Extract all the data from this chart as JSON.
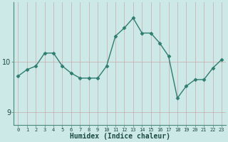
{
  "x": [
    0,
    1,
    2,
    3,
    4,
    5,
    6,
    7,
    8,
    9,
    10,
    11,
    12,
    13,
    14,
    15,
    16,
    17,
    18,
    19,
    20,
    21,
    22,
    23
  ],
  "y": [
    9.72,
    9.85,
    9.92,
    10.18,
    10.18,
    9.92,
    9.78,
    9.68,
    9.68,
    9.68,
    9.92,
    10.52,
    10.68,
    10.88,
    10.58,
    10.58,
    10.38,
    10.12,
    9.28,
    9.52,
    9.65,
    9.65,
    9.88,
    10.05
  ],
  "line_color": "#2e7d6e",
  "marker": "D",
  "marker_size": 2.5,
  "fig_bg": "#cce9e7",
  "axes_bg": "#cce9e7",
  "grid_color_v": "#c4aaaa",
  "grid_color_h": "#c4aaaa",
  "xlabel": "Humidex (Indice chaleur)",
  "yticks": [
    9,
    10
  ],
  "xlim": [
    -0.5,
    23.5
  ],
  "ylim": [
    8.75,
    11.2
  ],
  "xlabel_fontsize": 7,
  "xtick_fontsize": 5,
  "ytick_fontsize": 7,
  "spine_color": "#4a8a7a",
  "tick_color": "#2a5a52",
  "label_color": "#1a4a42"
}
